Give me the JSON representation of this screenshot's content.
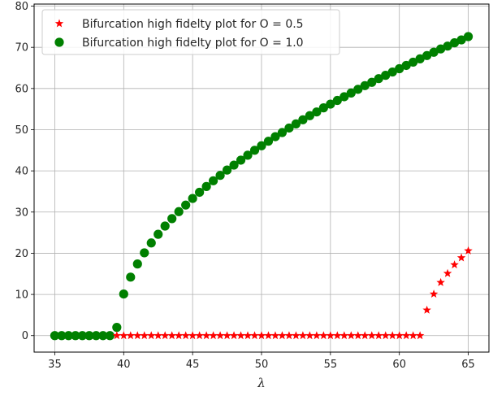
{
  "chart_data": {
    "type": "scatter",
    "title": "",
    "xlabel": "λ",
    "ylabel": "",
    "xlim": [
      33.5,
      66.5
    ],
    "ylim": [
      -4,
      80.5
    ],
    "xticks": [
      35,
      40,
      45,
      50,
      55,
      60,
      65
    ],
    "yticks": [
      0,
      10,
      20,
      30,
      40,
      50,
      60,
      70,
      80
    ],
    "grid": true,
    "legend_position": "top-left",
    "series": [
      {
        "name": "Bifurcation high fidelty plot for O = 0.5",
        "marker": "star",
        "color": "#ff0000",
        "x": [
          39.5,
          40.0,
          40.5,
          41.0,
          41.5,
          42.0,
          42.5,
          43.0,
          43.5,
          44.0,
          44.5,
          45.0,
          45.5,
          46.0,
          46.5,
          47.0,
          47.5,
          48.0,
          48.5,
          49.0,
          49.5,
          50.0,
          50.5,
          51.0,
          51.5,
          52.0,
          52.5,
          53.0,
          53.5,
          54.0,
          54.5,
          55.0,
          55.5,
          56.0,
          56.5,
          57.0,
          57.5,
          58.0,
          58.5,
          59.0,
          59.5,
          60.0,
          60.5,
          61.0,
          61.5,
          62.0,
          62.5,
          63.0,
          63.5,
          64.0,
          64.5,
          65.0
        ],
        "y": [
          0,
          0,
          0,
          0,
          0,
          0,
          0,
          0,
          0,
          0,
          0,
          0,
          0,
          0,
          0,
          0,
          0,
          0,
          0,
          0,
          0,
          0,
          0,
          0,
          0,
          0,
          0,
          0,
          0,
          0,
          0,
          0,
          0,
          0,
          0,
          0,
          0,
          0,
          0,
          0,
          0,
          0,
          0,
          0,
          0,
          6.2,
          10.1,
          12.9,
          15.1,
          17.2,
          18.9,
          20.6
        ]
      },
      {
        "name": "Bifurcation high fidelty plot for O = 1.0",
        "marker": "circle",
        "color": "#008000",
        "x": [
          35.0,
          35.5,
          36.0,
          36.5,
          37.0,
          37.5,
          38.0,
          38.5,
          39.0,
          39.5,
          40.0,
          40.5,
          41.0,
          41.5,
          42.0,
          42.5,
          43.0,
          43.5,
          44.0,
          44.5,
          45.0,
          45.5,
          46.0,
          46.5,
          47.0,
          47.5,
          48.0,
          48.5,
          49.0,
          49.5,
          50.0,
          50.5,
          51.0,
          51.5,
          52.0,
          52.5,
          53.0,
          53.5,
          54.0,
          54.5,
          55.0,
          55.5,
          56.0,
          56.5,
          57.0,
          57.5,
          58.0,
          58.5,
          59.0,
          59.5,
          60.0,
          60.5,
          61.0,
          61.5,
          62.0,
          62.5,
          63.0,
          63.5,
          64.0,
          64.5,
          65.0
        ],
        "y": [
          0,
          0,
          0,
          0,
          0,
          0,
          0,
          0,
          0,
          2.0,
          10.1,
          14.2,
          17.4,
          20.1,
          22.5,
          24.6,
          26.6,
          28.4,
          30.1,
          31.7,
          33.3,
          34.8,
          36.2,
          37.6,
          38.9,
          40.2,
          41.4,
          42.6,
          43.8,
          45.0,
          46.1,
          47.2,
          48.3,
          49.3,
          50.4,
          51.4,
          52.4,
          53.4,
          54.3,
          55.3,
          56.2,
          57.1,
          58.0,
          58.9,
          59.8,
          60.7,
          61.5,
          62.4,
          63.2,
          64.0,
          64.8,
          65.6,
          66.4,
          67.2,
          68.0,
          68.8,
          69.6,
          70.3,
          71.1,
          71.8,
          72.6
        ]
      }
    ]
  }
}
